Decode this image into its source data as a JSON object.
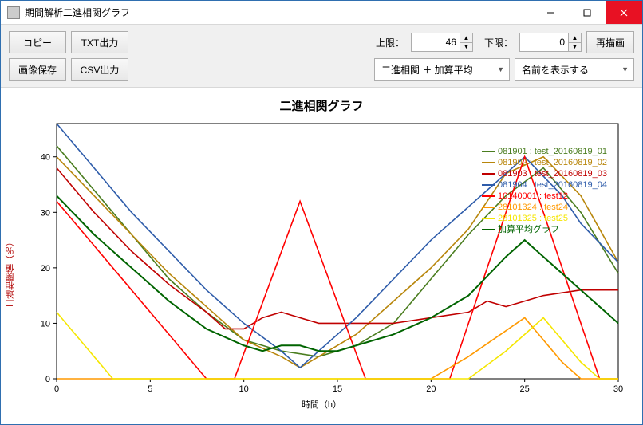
{
  "window": {
    "title": "期間解析二進相関グラフ"
  },
  "toolbar": {
    "copy": "コピー",
    "txt_out": "TXT出力",
    "img_save": "画像保存",
    "csv_out": "CSV出力",
    "upper_label": "上限：",
    "upper_value": "46",
    "lower_label": "下限：",
    "lower_value": "0",
    "redraw": "再描画",
    "mode_select": "二進相関 ＋ 加算平均",
    "name_select": "名前を表示する"
  },
  "chart": {
    "title": "二進相関グラフ",
    "xlabel": "時間（h）",
    "ylabel": "二進相関値（％）",
    "xlim": [
      0,
      30
    ],
    "ylim": [
      0,
      46
    ],
    "xticks": [
      0,
      5,
      10,
      15,
      20,
      25,
      30
    ],
    "yticks": [
      0,
      10,
      20,
      30,
      40
    ],
    "grid_color": "#000000",
    "background": "#ffffff",
    "axis_color": "#000000",
    "legend": [
      {
        "label": "081901 : test_20160819_01",
        "color": "#4a7d1f"
      },
      {
        "label": "081902 : test_20160819_02",
        "color": "#b8860b"
      },
      {
        "label": "081903 : test_20160819_03",
        "color": "#c00000"
      },
      {
        "label": "081904 : test_20160819_04",
        "color": "#2e5caa"
      },
      {
        "label": "10140001 : test12",
        "color": "#ff0000"
      },
      {
        "label": "28101324 : test24",
        "color": "#ff9900"
      },
      {
        "label": "28101325 : test25",
        "color": "#f5e600"
      },
      {
        "label": "加算平均グラフ",
        "color": "#006400"
      }
    ],
    "series": [
      {
        "name": "s1",
        "color": "#4a7d1f",
        "width": 1.6,
        "points": [
          [
            0,
            42
          ],
          [
            2,
            34
          ],
          [
            4,
            26
          ],
          [
            6,
            18
          ],
          [
            8,
            12
          ],
          [
            10,
            7
          ],
          [
            12,
            5
          ],
          [
            14,
            4
          ],
          [
            16,
            6
          ],
          [
            18,
            10
          ],
          [
            20,
            18
          ],
          [
            22,
            26
          ],
          [
            24,
            33
          ],
          [
            26,
            38
          ],
          [
            28,
            30
          ],
          [
            30,
            19
          ]
        ]
      },
      {
        "name": "s2",
        "color": "#b8860b",
        "width": 1.6,
        "points": [
          [
            0,
            40
          ],
          [
            2,
            33
          ],
          [
            4,
            26
          ],
          [
            6,
            19
          ],
          [
            8,
            13
          ],
          [
            10,
            7
          ],
          [
            12,
            4
          ],
          [
            13,
            2
          ],
          [
            14,
            4
          ],
          [
            16,
            8
          ],
          [
            18,
            14
          ],
          [
            20,
            20
          ],
          [
            22,
            27
          ],
          [
            24,
            37
          ],
          [
            26,
            40
          ],
          [
            28,
            33
          ],
          [
            30,
            21
          ]
        ]
      },
      {
        "name": "s3",
        "color": "#c00000",
        "width": 1.6,
        "points": [
          [
            0,
            38
          ],
          [
            2,
            30
          ],
          [
            4,
            23
          ],
          [
            6,
            17
          ],
          [
            8,
            12
          ],
          [
            9,
            9
          ],
          [
            10,
            9
          ],
          [
            11,
            11
          ],
          [
            12,
            12
          ],
          [
            13,
            11
          ],
          [
            14,
            10
          ],
          [
            16,
            10
          ],
          [
            18,
            10
          ],
          [
            20,
            11
          ],
          [
            22,
            12
          ],
          [
            23,
            14
          ],
          [
            24,
            13
          ],
          [
            25,
            14
          ],
          [
            26,
            15
          ],
          [
            28,
            16
          ],
          [
            30,
            16
          ]
        ]
      },
      {
        "name": "s4",
        "color": "#2e5caa",
        "width": 1.6,
        "points": [
          [
            0,
            46
          ],
          [
            2,
            38
          ],
          [
            4,
            30
          ],
          [
            6,
            23
          ],
          [
            8,
            16
          ],
          [
            10,
            10
          ],
          [
            12,
            5
          ],
          [
            13,
            2
          ],
          [
            14,
            5
          ],
          [
            16,
            11
          ],
          [
            18,
            18
          ],
          [
            20,
            25
          ],
          [
            22,
            31
          ],
          [
            24,
            37
          ],
          [
            25,
            40
          ],
          [
            27,
            33
          ],
          [
            28,
            28
          ],
          [
            30,
            21
          ]
        ]
      },
      {
        "name": "s5",
        "color": "#ff0000",
        "width": 1.6,
        "points": [
          [
            0,
            32
          ],
          [
            2,
            24
          ],
          [
            4,
            16
          ],
          [
            6,
            8
          ],
          [
            8,
            0
          ],
          [
            9.5,
            0
          ],
          [
            13,
            32
          ],
          [
            16.5,
            0
          ],
          [
            18,
            0
          ],
          [
            20,
            0
          ],
          [
            21,
            0
          ],
          [
            25,
            40
          ],
          [
            29,
            0
          ],
          [
            30,
            0
          ]
        ]
      },
      {
        "name": "s6",
        "color": "#ff9900",
        "width": 1.6,
        "points": [
          [
            0,
            0
          ],
          [
            20,
            0
          ],
          [
            22,
            4
          ],
          [
            25,
            11
          ],
          [
            27,
            3
          ],
          [
            28,
            0
          ],
          [
            30,
            0
          ]
        ]
      },
      {
        "name": "s7",
        "color": "#f5e600",
        "width": 1.6,
        "points": [
          [
            0,
            12
          ],
          [
            3,
            0
          ],
          [
            4,
            0
          ],
          [
            22,
            0
          ],
          [
            24,
            5
          ],
          [
            26,
            11
          ],
          [
            28,
            3
          ],
          [
            29,
            0
          ],
          [
            30,
            0
          ]
        ]
      },
      {
        "name": "avg",
        "color": "#006400",
        "width": 2.0,
        "points": [
          [
            0,
            33
          ],
          [
            2,
            26
          ],
          [
            4,
            20
          ],
          [
            6,
            14
          ],
          [
            8,
            9
          ],
          [
            10,
            6
          ],
          [
            11,
            5
          ],
          [
            12,
            6
          ],
          [
            13,
            6
          ],
          [
            14,
            5
          ],
          [
            15,
            5
          ],
          [
            16,
            6
          ],
          [
            18,
            8
          ],
          [
            20,
            11
          ],
          [
            22,
            15
          ],
          [
            24,
            22
          ],
          [
            25,
            25
          ],
          [
            26,
            22
          ],
          [
            28,
            16
          ],
          [
            30,
            10
          ]
        ]
      }
    ]
  }
}
